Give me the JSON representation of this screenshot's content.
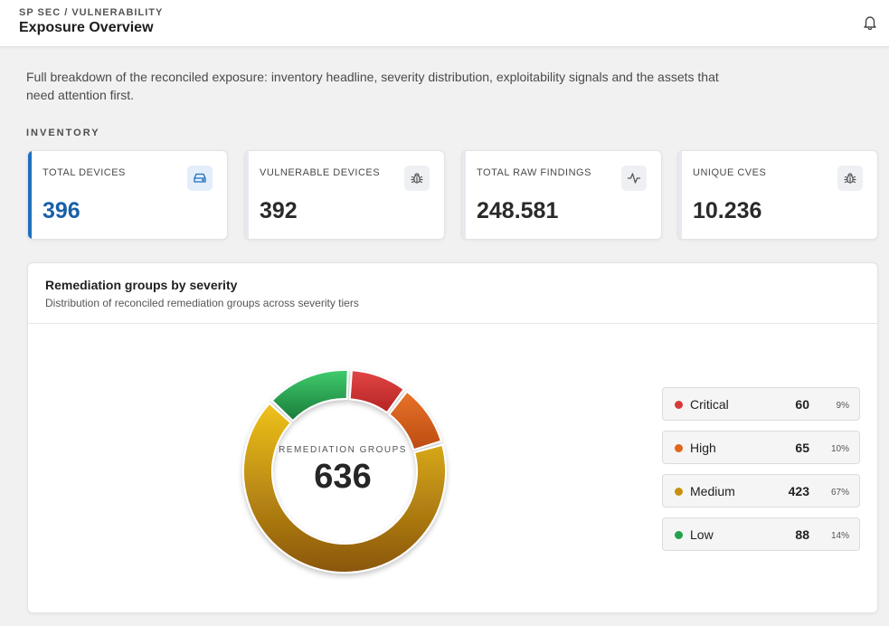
{
  "header": {
    "breadcrumb": "SP SEC / VULNERABILITY",
    "title": "Exposure Overview",
    "notifications_icon": "bell-icon"
  },
  "intro": "Full breakdown of the reconciled exposure: inventory headline, severity distribution, exploitability signals and the assets that need attention first.",
  "inventory": {
    "label": "INVENTORY",
    "cards": [
      {
        "label": "TOTAL DEVICES",
        "value": "396",
        "icon": "hard-drive-icon"
      },
      {
        "label": "VULNERABLE DEVICES",
        "value": "392",
        "icon": "bug-icon"
      },
      {
        "label": "TOTAL RAW FINDINGS",
        "value": "248.581",
        "icon": "activity-icon"
      },
      {
        "label": "UNIQUE CVES",
        "value": "10.236",
        "icon": "bug-icon"
      }
    ]
  },
  "severity_panel": {
    "title": "Remediation groups by severity",
    "subtitle": "Distribution of reconciled remediation groups across severity tiers",
    "center_label": "REMEDIATION GROUPS",
    "center_value": "636",
    "legend": [
      {
        "name": "Critical",
        "count": "60",
        "pct": "9%",
        "color": "#d63a3a"
      },
      {
        "name": "High",
        "count": "65",
        "pct": "10%",
        "color": "#e0661c"
      },
      {
        "name": "Medium",
        "count": "423",
        "pct": "67%",
        "color": "#c9900f"
      },
      {
        "name": "Low",
        "count": "88",
        "pct": "14%",
        "color": "#22a24a"
      }
    ]
  },
  "chart_data": {
    "type": "pie",
    "categories": [
      "Critical",
      "High",
      "Medium",
      "Low"
    ],
    "values": [
      60,
      65,
      423,
      88
    ],
    "colors": [
      "#d63a3a",
      "#e0661c",
      "#c9900f",
      "#22a24a"
    ]
  }
}
